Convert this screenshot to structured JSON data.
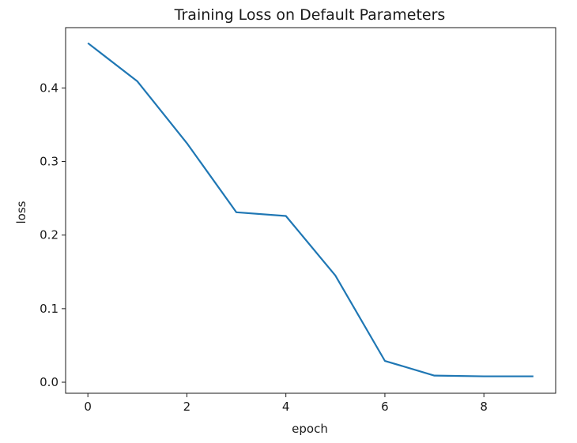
{
  "chart_data": {
    "type": "line",
    "title": "Training Loss on Default Parameters",
    "xlabel": "epoch",
    "ylabel": "loss",
    "xlim": [
      -0.45,
      9.45
    ],
    "ylim": [
      -0.015,
      0.482
    ],
    "xticks": [
      0,
      2,
      4,
      6,
      8
    ],
    "xtick_labels": [
      "0",
      "2",
      "4",
      "6",
      "8"
    ],
    "yticks": [
      0.0,
      0.1,
      0.2,
      0.3,
      0.4
    ],
    "ytick_labels": [
      "0.0",
      "0.1",
      "0.2",
      "0.3",
      "0.4"
    ],
    "grid": false,
    "series": [
      {
        "color": "#1f77b4",
        "x": [
          0,
          1,
          2,
          3,
          4,
          5,
          6,
          7,
          8,
          9
        ],
        "y": [
          0.461,
          0.409,
          0.325,
          0.231,
          0.226,
          0.145,
          0.029,
          0.009,
          0.008,
          0.008
        ]
      }
    ]
  }
}
